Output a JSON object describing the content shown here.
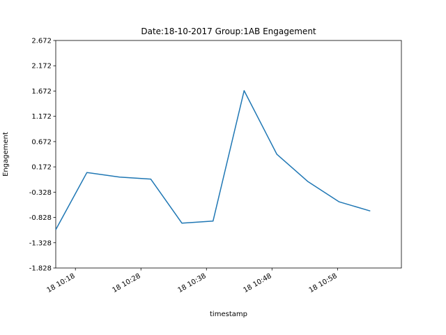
{
  "chart_data": {
    "type": "line",
    "title": "Date:18-10-2017 Group:1AB Engagement",
    "xlabel": "timestamp",
    "ylabel": "Engagement",
    "x_ticks": [
      "18 10:18",
      "18 10:28",
      "18 10:38",
      "18 10:48",
      "18 10:58"
    ],
    "y_ticks": [
      "-1.828",
      "-1.328",
      "-0.828",
      "-0.328",
      "0.172",
      "0.672",
      "1.172",
      "1.672",
      "2.172",
      "2.672"
    ],
    "ylim": [
      -1.828,
      2.672
    ],
    "x_tick_times": [
      "10:18",
      "10:28",
      "10:38",
      "10:48",
      "10:58"
    ],
    "xlim": [
      "10:15:00",
      "10:67:45"
    ],
    "grid": false,
    "series": [
      {
        "color": "#1f77b4",
        "x": [
          "10:15:00",
          "10:19:45",
          "10:24:45",
          "10:29:30",
          "10:34:15",
          "10:39:00",
          "10:43:45",
          "10:48:45",
          "10:53:30",
          "10:58:15",
          "10:63:00"
        ],
        "y": [
          -1.07,
          0.06,
          -0.03,
          -0.07,
          -0.94,
          -0.9,
          1.68,
          0.42,
          -0.12,
          -0.52,
          -0.7
        ]
      }
    ]
  }
}
